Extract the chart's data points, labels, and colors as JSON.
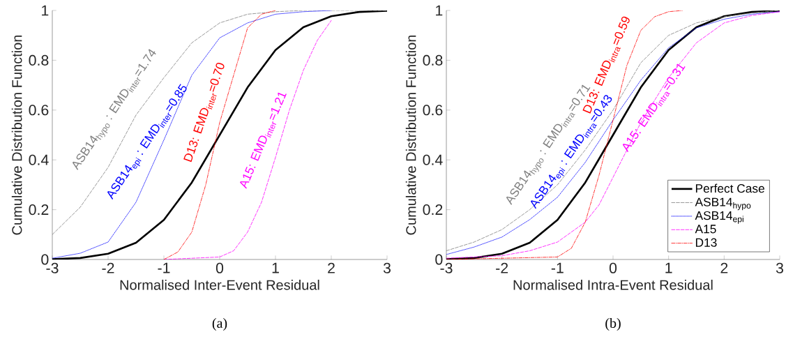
{
  "chart_data": [
    {
      "type": "line",
      "xlabel": "Normalised Inter-Event Residual",
      "ylabel": "Cumulative Distribution Function",
      "xlim": [
        -3,
        3
      ],
      "ylim": [
        0,
        1
      ],
      "xticks": [
        -3,
        -2,
        -1,
        0,
        1,
        2,
        3
      ],
      "yticks": [
        0,
        0.2,
        0.4,
        0.6,
        0.8,
        1
      ],
      "grid": false,
      "legend": false,
      "series": [
        {
          "color": "#000000",
          "line_style": "solid",
          "x": [
            -3,
            -2.5,
            -2,
            -1.5,
            -1,
            -0.5,
            0,
            0.5,
            1,
            1.5,
            2,
            2.5,
            3
          ],
          "values": [
            0.001,
            0.006,
            0.023,
            0.067,
            0.159,
            0.309,
            0.5,
            0.691,
            0.841,
            0.933,
            0.977,
            0.994,
            0.999
          ]
        },
        {
          "color": "#808080",
          "line_style": "dashed",
          "x": [
            -3,
            -2.5,
            -2,
            -1.5,
            -1,
            -0.5,
            0,
            0.5,
            1,
            1.5,
            2,
            3
          ],
          "values": [
            0.1,
            0.21,
            0.37,
            0.58,
            0.73,
            0.87,
            0.95,
            0.985,
            0.995,
            1,
            1,
            1
          ]
        },
        {
          "color": "#0000ff",
          "line_style": "dotted",
          "x": [
            -3,
            -2.5,
            -2,
            -1.5,
            -1,
            -0.5,
            0,
            0.5,
            1,
            1.5,
            2
          ],
          "values": [
            0.005,
            0.025,
            0.07,
            0.23,
            0.48,
            0.74,
            0.89,
            0.95,
            0.985,
            0.995,
            1
          ]
        },
        {
          "color": "#ff00ff",
          "line_style": "dashed",
          "x": [
            -1,
            0,
            0.25,
            0.5,
            0.75,
            1,
            1.25,
            1.5,
            1.75,
            2
          ],
          "values": [
            0,
            0.01,
            0.035,
            0.11,
            0.23,
            0.41,
            0.6,
            0.76,
            0.88,
            0.96
          ]
        },
        {
          "color": "#ff0000",
          "line_style": "dashdot",
          "x": [
            -1,
            -0.75,
            -0.5,
            -0.25,
            0,
            0.25,
            0.5,
            0.75,
            1
          ],
          "values": [
            0,
            0.03,
            0.11,
            0.3,
            0.55,
            0.74,
            0.93,
            0.985,
            1
          ]
        }
      ],
      "annotations": [
        "ASB14$_{hypo}$ : EMD$_{inter}$=1.74",
        "ASB14$_{epi}$ : EMD$_{inter}$=0.85",
        "D13: EMD$_{inter}$=0.70",
        "A15: EMD$_{inter}$=1.21",
        "(a)"
      ]
    },
    {
      "type": "line",
      "xlabel": "Normalised Intra-Event Residual",
      "ylabel": "Cumulative Distribution Function",
      "xlim": [
        -3,
        3
      ],
      "ylim": [
        0,
        1
      ],
      "xticks": [
        -3,
        -2,
        -1,
        0,
        1,
        2,
        3
      ],
      "yticks": [
        0,
        0.2,
        0.4,
        0.6,
        0.8,
        1
      ],
      "grid": false,
      "legend": "bottom right",
      "series": [
        {
          "name": "Perfect Case",
          "color": "#000000",
          "line_style": "solid",
          "x": [
            -3,
            -2.5,
            -2,
            -1.5,
            -1,
            -0.5,
            0,
            0.5,
            1,
            1.5,
            2,
            2.5,
            3
          ],
          "values": [
            0.001,
            0.006,
            0.023,
            0.067,
            0.159,
            0.309,
            0.5,
            0.691,
            0.841,
            0.933,
            0.977,
            0.994,
            0.999
          ]
        },
        {
          "name": "ASB14$_{hypo}$",
          "color": "#808080",
          "line_style": "dashed",
          "x": [
            -3,
            -2.5,
            -2,
            -1.5,
            -1,
            -0.5,
            0,
            0.5,
            1,
            1.5,
            2,
            2.5,
            3
          ],
          "values": [
            0.035,
            0.07,
            0.12,
            0.2,
            0.3,
            0.44,
            0.6,
            0.79,
            0.9,
            0.95,
            0.975,
            0.99,
            1
          ]
        },
        {
          "name": "ASB14$_{epi}$",
          "color": "#0000ff",
          "line_style": "dotted",
          "x": [
            -3,
            -2.5,
            -2,
            -1.5,
            -1,
            -0.5,
            0,
            0.5,
            1,
            1.5,
            2,
            2.5,
            3
          ],
          "values": [
            0.02,
            0.05,
            0.09,
            0.16,
            0.25,
            0.39,
            0.56,
            0.72,
            0.85,
            0.93,
            0.965,
            0.985,
            0.995
          ]
        },
        {
          "name": "A15",
          "color": "#ff00ff",
          "line_style": "dashed",
          "x": [
            -3,
            -2,
            -1.5,
            -1,
            -0.5,
            -0.25,
            0,
            0.5,
            1,
            1.5,
            2,
            2.5,
            3
          ],
          "values": [
            0.005,
            0.015,
            0.035,
            0.07,
            0.15,
            0.22,
            0.33,
            0.55,
            0.73,
            0.87,
            0.95,
            0.98,
            0.995
          ]
        },
        {
          "name": "D13",
          "color": "#ff0000",
          "line_style": "dashdot",
          "x": [
            -3,
            -1,
            -0.75,
            -0.5,
            -0.25,
            0,
            0.25,
            0.5,
            0.75,
            1,
            1.25
          ],
          "values": [
            0,
            0.01,
            0.045,
            0.15,
            0.34,
            0.56,
            0.78,
            0.92,
            0.975,
            0.995,
            1
          ]
        }
      ],
      "annotations": [
        "ASB14$_{hypo}$ : EMD$_{intra}$=0.71",
        "ASB14$_{epi}$ : EMD$_{intra}$=0.43",
        "D13: EMD$_{intra}$=0.59",
        "A15: EMD$_{intra}$=0.31",
        "(b)"
      ]
    }
  ]
}
